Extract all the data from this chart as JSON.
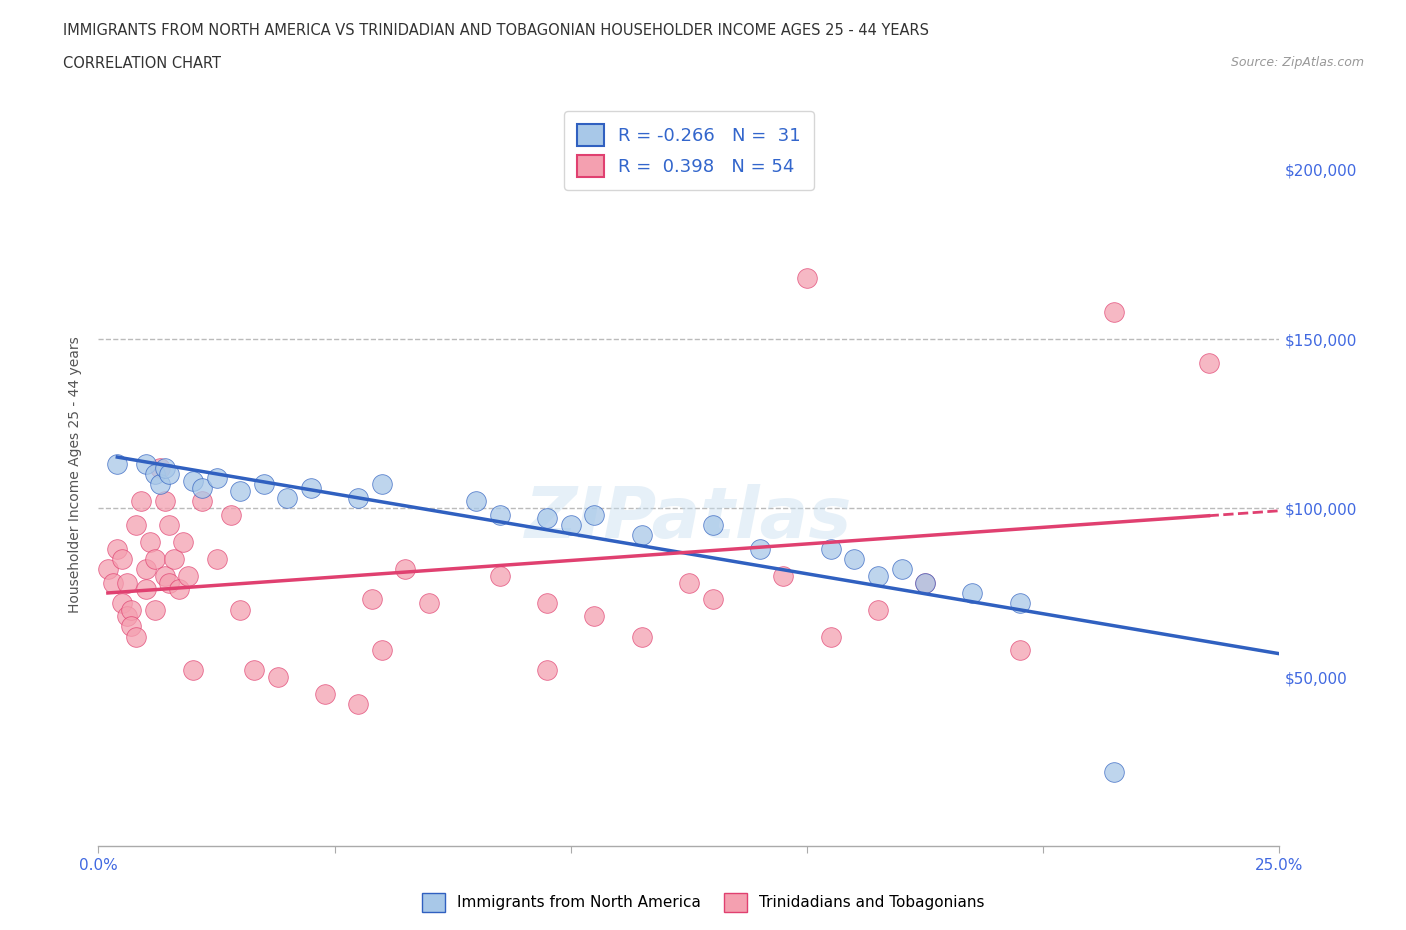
{
  "title_line1": "IMMIGRANTS FROM NORTH AMERICA VS TRINIDADIAN AND TOBAGONIAN HOUSEHOLDER INCOME AGES 25 - 44 YEARS",
  "title_line2": "CORRELATION CHART",
  "source_text": "Source: ZipAtlas.com",
  "ylabel": "Householder Income Ages 25 - 44 years",
  "xlim": [
    0.0,
    0.25
  ],
  "ylim": [
    0,
    220000
  ],
  "xtick_vals": [
    0.0,
    0.05,
    0.1,
    0.15,
    0.2,
    0.25
  ],
  "ytick_values": [
    50000,
    100000,
    150000,
    200000
  ],
  "ytick_labels": [
    "$50,000",
    "$100,000",
    "$150,000",
    "$200,000"
  ],
  "watermark": "ZIPatlas",
  "blue_color": "#a8c8e8",
  "pink_color": "#f4a0b0",
  "blue_line_color": "#3060c0",
  "pink_line_color": "#e04070",
  "blue_scatter": [
    [
      0.004,
      113000
    ],
    [
      0.01,
      113000
    ],
    [
      0.012,
      110000
    ],
    [
      0.013,
      107000
    ],
    [
      0.014,
      112000
    ],
    [
      0.015,
      110000
    ],
    [
      0.02,
      108000
    ],
    [
      0.022,
      106000
    ],
    [
      0.025,
      109000
    ],
    [
      0.03,
      105000
    ],
    [
      0.035,
      107000
    ],
    [
      0.04,
      103000
    ],
    [
      0.045,
      106000
    ],
    [
      0.055,
      103000
    ],
    [
      0.06,
      107000
    ],
    [
      0.08,
      102000
    ],
    [
      0.085,
      98000
    ],
    [
      0.095,
      97000
    ],
    [
      0.1,
      95000
    ],
    [
      0.105,
      98000
    ],
    [
      0.115,
      92000
    ],
    [
      0.13,
      95000
    ],
    [
      0.14,
      88000
    ],
    [
      0.155,
      88000
    ],
    [
      0.16,
      85000
    ],
    [
      0.165,
      80000
    ],
    [
      0.17,
      82000
    ],
    [
      0.175,
      78000
    ],
    [
      0.185,
      75000
    ],
    [
      0.195,
      72000
    ],
    [
      0.215,
      22000
    ]
  ],
  "pink_scatter": [
    [
      0.002,
      82000
    ],
    [
      0.003,
      78000
    ],
    [
      0.004,
      88000
    ],
    [
      0.005,
      85000
    ],
    [
      0.005,
      72000
    ],
    [
      0.006,
      68000
    ],
    [
      0.006,
      78000
    ],
    [
      0.007,
      70000
    ],
    [
      0.007,
      65000
    ],
    [
      0.008,
      95000
    ],
    [
      0.008,
      62000
    ],
    [
      0.009,
      102000
    ],
    [
      0.01,
      82000
    ],
    [
      0.01,
      76000
    ],
    [
      0.011,
      90000
    ],
    [
      0.012,
      85000
    ],
    [
      0.012,
      70000
    ],
    [
      0.013,
      112000
    ],
    [
      0.014,
      80000
    ],
    [
      0.014,
      102000
    ],
    [
      0.015,
      78000
    ],
    [
      0.015,
      95000
    ],
    [
      0.016,
      85000
    ],
    [
      0.017,
      76000
    ],
    [
      0.018,
      90000
    ],
    [
      0.019,
      80000
    ],
    [
      0.02,
      52000
    ],
    [
      0.022,
      102000
    ],
    [
      0.025,
      85000
    ],
    [
      0.028,
      98000
    ],
    [
      0.03,
      70000
    ],
    [
      0.033,
      52000
    ],
    [
      0.038,
      50000
    ],
    [
      0.048,
      45000
    ],
    [
      0.055,
      42000
    ],
    [
      0.058,
      73000
    ],
    [
      0.06,
      58000
    ],
    [
      0.065,
      82000
    ],
    [
      0.07,
      72000
    ],
    [
      0.085,
      80000
    ],
    [
      0.095,
      72000
    ],
    [
      0.095,
      52000
    ],
    [
      0.105,
      68000
    ],
    [
      0.115,
      62000
    ],
    [
      0.125,
      78000
    ],
    [
      0.13,
      73000
    ],
    [
      0.145,
      80000
    ],
    [
      0.15,
      168000
    ],
    [
      0.155,
      62000
    ],
    [
      0.165,
      70000
    ],
    [
      0.175,
      78000
    ],
    [
      0.195,
      58000
    ],
    [
      0.215,
      158000
    ],
    [
      0.235,
      143000
    ]
  ],
  "dashed_line_y1": 150000,
  "dashed_line_y2": 100000,
  "background_color": "#ffffff"
}
